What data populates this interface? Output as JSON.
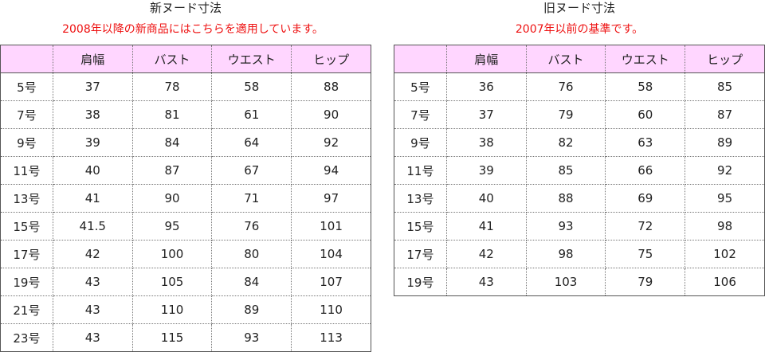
{
  "new_table": {
    "title": "新ヌード寸法",
    "subtitle": "2008年以降の新商品にはこちらを適用しています。",
    "header": [
      "",
      "肩幅",
      "バスト",
      "ウエスト",
      "ヒップ"
    ],
    "rows": [
      [
        "5号",
        "37",
        "78",
        "58",
        "88"
      ],
      [
        "7号",
        "38",
        "81",
        "61",
        "90"
      ],
      [
        "9号",
        "39",
        "84",
        "64",
        "92"
      ],
      [
        "11号",
        "40",
        "87",
        "67",
        "94"
      ],
      [
        "13号",
        "41",
        "90",
        "71",
        "97"
      ],
      [
        "15号",
        "41.5",
        "95",
        "76",
        "101"
      ],
      [
        "17号",
        "42",
        "100",
        "80",
        "104"
      ],
      [
        "19号",
        "43",
        "105",
        "84",
        "107"
      ],
      [
        "21号",
        "43",
        "110",
        "89",
        "110"
      ],
      [
        "23号",
        "43",
        "115",
        "93",
        "113"
      ]
    ]
  },
  "old_table": {
    "title": "旧ヌード寸法",
    "subtitle": "2007年以前の基準です。",
    "header": [
      "",
      "肩幅",
      "バスト",
      "ウエスト",
      "ヒップ"
    ],
    "rows": [
      [
        "5号",
        "36",
        "76",
        "58",
        "85"
      ],
      [
        "7号",
        "37",
        "79",
        "60",
        "87"
      ],
      [
        "9号",
        "38",
        "82",
        "63",
        "89"
      ],
      [
        "11号",
        "39",
        "85",
        "66",
        "92"
      ],
      [
        "13号",
        "40",
        "88",
        "69",
        "95"
      ],
      [
        "15号",
        "41",
        "93",
        "72",
        "98"
      ],
      [
        "17号",
        "42",
        "98",
        "75",
        "102"
      ],
      [
        "19号",
        "43",
        "103",
        "79",
        "106"
      ]
    ]
  },
  "colors": {
    "header_fill": "#ffd6ff",
    "note_text": "#ee1111",
    "grid_line": "#777777"
  }
}
